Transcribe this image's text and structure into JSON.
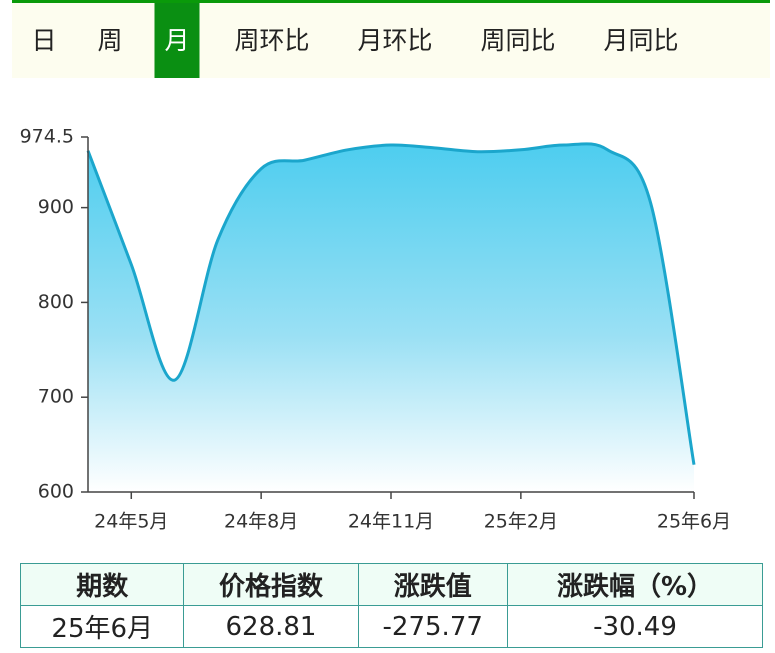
{
  "tabs": [
    "日",
    "周",
    "月",
    "周环比",
    "月环比",
    "周同比",
    "月同比"
  ],
  "active_tab": 2,
  "chart_data": {
    "type": "area",
    "categories": [
      null,
      "24年5月",
      null,
      null,
      "24年8月",
      null,
      null,
      "24年11月",
      null,
      null,
      "25年2月",
      null,
      null,
      null,
      "25年6月"
    ],
    "values": [
      960,
      840,
      718,
      866,
      941,
      950,
      961,
      966,
      963,
      959,
      961,
      966,
      961,
      904.58,
      628.81
    ],
    "color": "#1ba6cc",
    "ylim": [
      600,
      974.5
    ],
    "yticks": [
      600,
      700,
      800,
      900,
      974.5
    ],
    "grid": false
  },
  "table": {
    "header": [
      "期数",
      "价格指数",
      "涨跌值",
      "涨跌幅（%）"
    ],
    "rows": [
      [
        "25年6月",
        "628.81",
        "-275.77",
        "-30.49"
      ]
    ]
  }
}
